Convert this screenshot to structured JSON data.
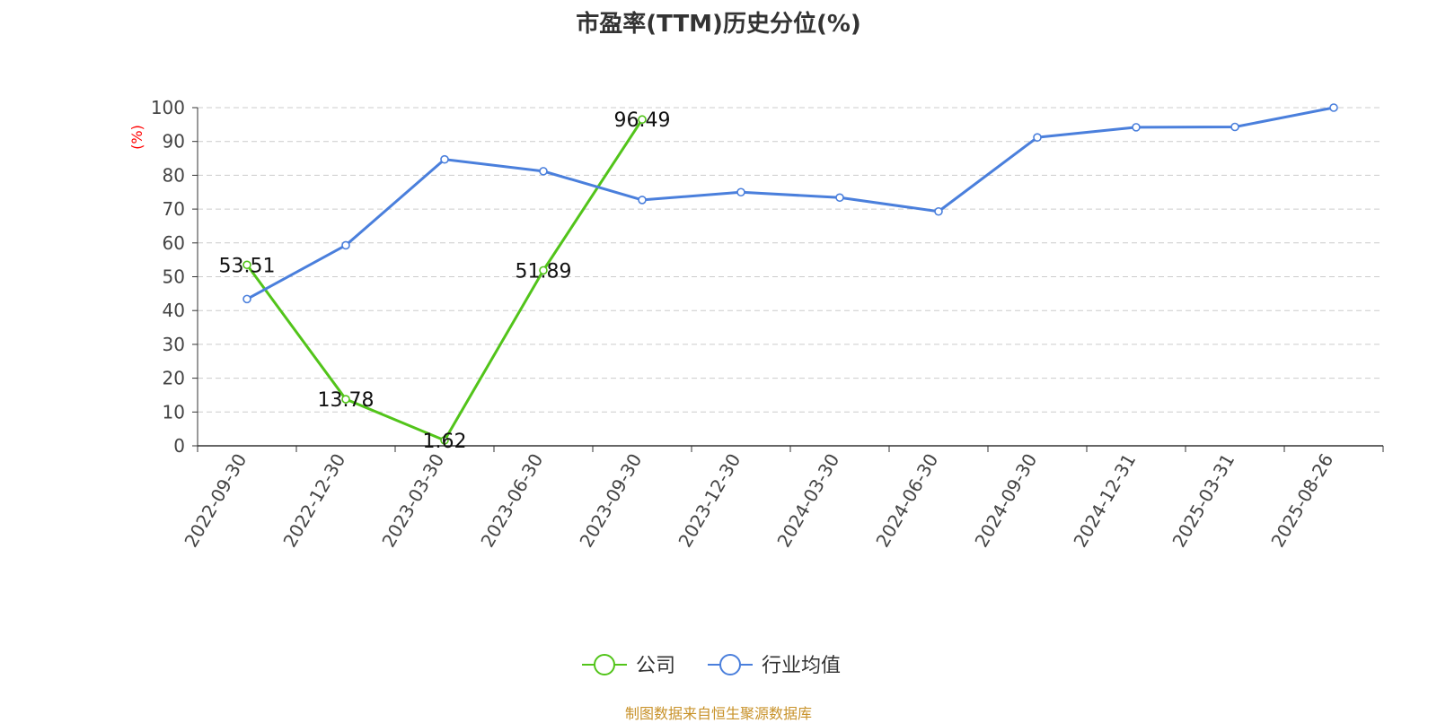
{
  "chart_data": {
    "type": "line",
    "title": "市盈率(TTM)历史分位(%)",
    "ylabel": "(%)",
    "xlabel": "",
    "ylim": [
      0,
      100
    ],
    "yticks": [
      0,
      10,
      20,
      30,
      40,
      50,
      60,
      70,
      80,
      90,
      100
    ],
    "categories": [
      "2022-09-30",
      "2022-12-30",
      "2023-03-30",
      "2023-06-30",
      "2023-09-30",
      "2023-12-30",
      "2024-03-30",
      "2024-06-30",
      "2024-09-30",
      "2024-12-31",
      "2025-03-31",
      "2025-08-26"
    ],
    "grid": true,
    "legend_position": "bottom",
    "series": [
      {
        "name": "公司",
        "color": "#52c41a",
        "values": [
          53.51,
          13.78,
          1.62,
          51.89,
          96.49,
          null,
          null,
          null,
          null,
          null,
          null,
          null
        ],
        "data_labels": [
          "53.51",
          "13.78",
          "1.62",
          "51.89",
          "96.49",
          null,
          null,
          null,
          null,
          null,
          null,
          null
        ]
      },
      {
        "name": "行业均值",
        "color": "#4a7fdc",
        "values": [
          43.4,
          59.3,
          84.7,
          81.2,
          72.7,
          75.0,
          73.4,
          69.3,
          91.2,
          94.2,
          94.3,
          100
        ],
        "data_labels": null
      }
    ]
  },
  "source_note": "制图数据来自恒生聚源数据库"
}
